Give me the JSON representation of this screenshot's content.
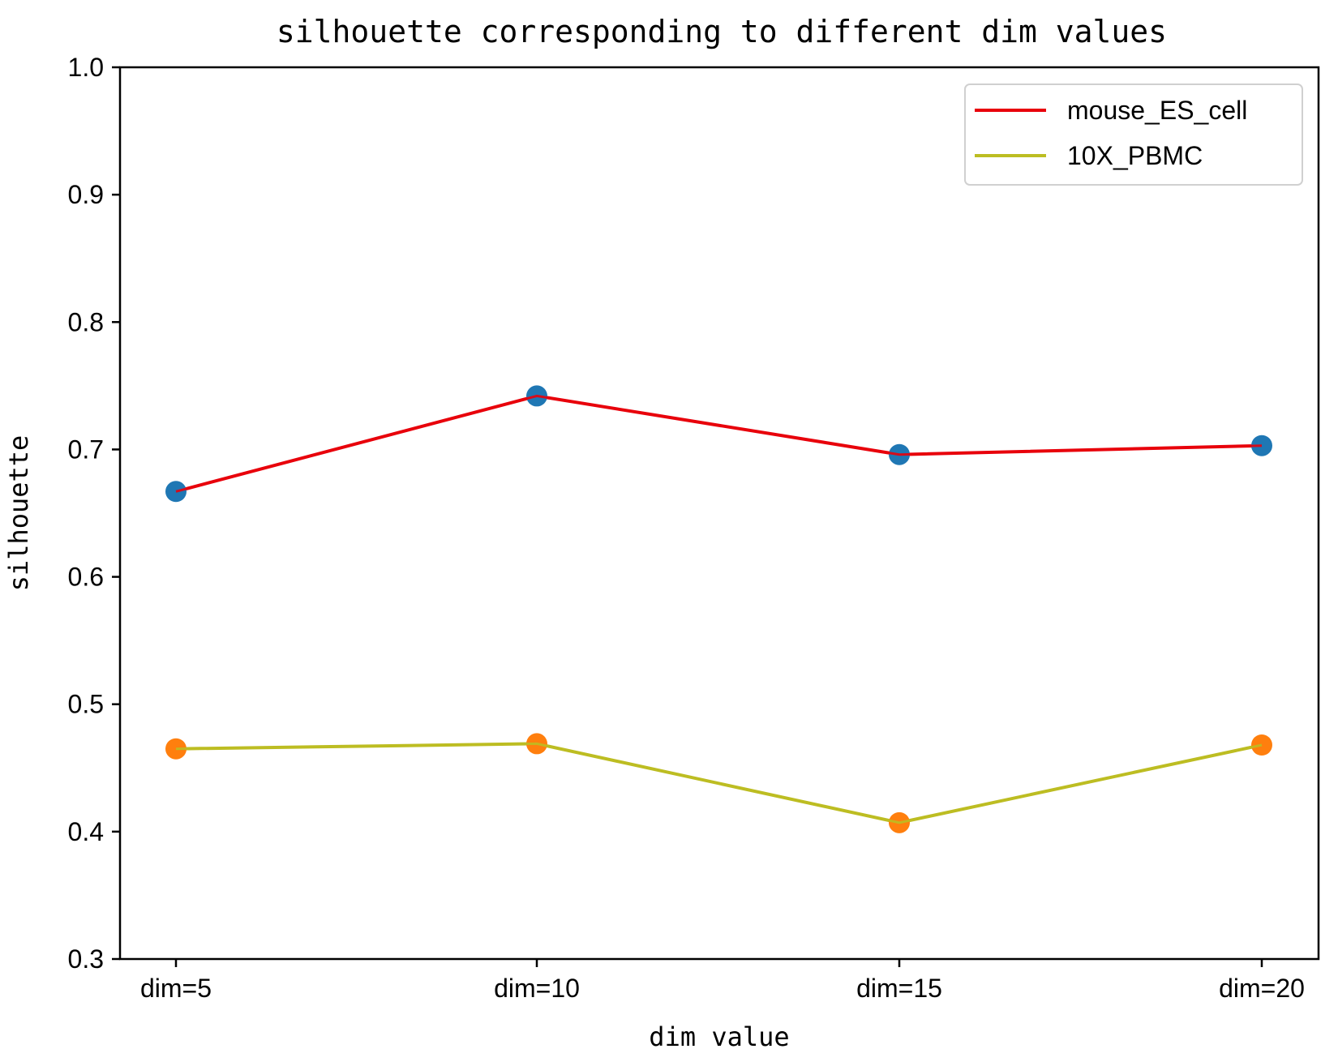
{
  "chart_data": {
    "type": "line",
    "title": "silhouette corresponding to different dim values",
    "xlabel": "dim value",
    "ylabel": "silhouette",
    "categories": [
      "dim=5",
      "dim=10",
      "dim=15",
      "dim=20"
    ],
    "ylim": [
      0.3,
      1.0
    ],
    "yticks": [
      "0.3",
      "0.4",
      "0.5",
      "0.6",
      "0.7",
      "0.8",
      "0.9",
      "1.0"
    ],
    "grid": false,
    "legend_position": "top-right",
    "series": [
      {
        "name": "mouse_ES_cell",
        "values": [
          0.667,
          0.742,
          0.696,
          0.703
        ],
        "line_color": "#e8000b",
        "marker_color": "#1f77b4"
      },
      {
        "name": "10X_PBMC",
        "values": [
          0.465,
          0.469,
          0.407,
          0.468
        ],
        "line_color": "#bcbd22",
        "marker_color": "#ff7f0e"
      }
    ]
  }
}
